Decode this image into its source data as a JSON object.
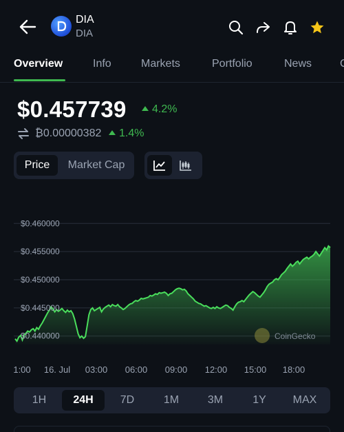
{
  "header": {
    "coin_name": "DIA",
    "coin_symbol": "DIA"
  },
  "tabs": [
    "Overview",
    "Info",
    "Markets",
    "Portfolio",
    "News",
    "C"
  ],
  "price": {
    "value": "$0.457739",
    "change": "4.2%",
    "btc_value": "₿0.00000382",
    "btc_change": "1.4%"
  },
  "toggles": {
    "price": "Price",
    "market_cap": "Market Cap"
  },
  "chart_data": {
    "type": "area",
    "y_ticks": [
      "$0.460000",
      "$0.455000",
      "$0.450000",
      "$0.445000",
      "$0.440000"
    ],
    "ylim": [
      0.4385,
      0.4615
    ],
    "x_ticks": [
      "1:00",
      "16. Jul",
      "03:00",
      "06:00",
      "09:00",
      "12:00",
      "15:00",
      "18:00"
    ],
    "watermark": "CoinGecko",
    "values": [
      0.4395,
      0.4391,
      0.4398,
      0.4401,
      0.4393,
      0.4402,
      0.4405,
      0.4409,
      0.4407,
      0.4411,
      0.4413,
      0.4409,
      0.4415,
      0.4412,
      0.4418,
      0.4423,
      0.4429,
      0.4435,
      0.4441,
      0.4446,
      0.4452,
      0.4448,
      0.4443,
      0.4447,
      0.4444,
      0.4446,
      0.4449,
      0.4445,
      0.4442,
      0.4446,
      0.4443,
      0.4445,
      0.444,
      0.443,
      0.4417,
      0.4404,
      0.4397,
      0.44,
      0.4396,
      0.4399,
      0.4418,
      0.4438,
      0.4447,
      0.445,
      0.4445,
      0.4447,
      0.4449,
      0.4451,
      0.4443,
      0.4448,
      0.4451,
      0.4453,
      0.4455,
      0.4452,
      0.4456,
      0.4454,
      0.4453,
      0.4456,
      0.4452,
      0.445,
      0.4447,
      0.4449,
      0.4452,
      0.4455,
      0.4457,
      0.4458,
      0.4461,
      0.4463,
      0.4462,
      0.4464,
      0.4467,
      0.4466,
      0.4467,
      0.4468,
      0.4469,
      0.4472,
      0.4471,
      0.4473,
      0.4475,
      0.4474,
      0.4477,
      0.4476,
      0.4477,
      0.4478,
      0.4476,
      0.4472,
      0.4475,
      0.4476,
      0.4479,
      0.4482,
      0.4484,
      0.4485,
      0.4484,
      0.4482,
      0.4483,
      0.448,
      0.4475,
      0.4472,
      0.4469,
      0.4466,
      0.4462,
      0.446,
      0.4458,
      0.4457,
      0.4455,
      0.4453,
      0.4454,
      0.4452,
      0.445,
      0.4449,
      0.4451,
      0.4449,
      0.4452,
      0.445,
      0.4449,
      0.4451,
      0.4453,
      0.4455,
      0.4454,
      0.4451,
      0.4449,
      0.4446,
      0.4452,
      0.4457,
      0.446,
      0.4461,
      0.4463,
      0.4461,
      0.4465,
      0.4469,
      0.4473,
      0.4476,
      0.4479,
      0.4477,
      0.4474,
      0.4471,
      0.4469,
      0.4473,
      0.4477,
      0.4482,
      0.4488,
      0.4492,
      0.4494,
      0.4496,
      0.45,
      0.4502,
      0.45,
      0.4504,
      0.4509,
      0.4512,
      0.4515,
      0.452,
      0.4524,
      0.4528,
      0.4524,
      0.4527,
      0.4531,
      0.4533,
      0.4528,
      0.4532,
      0.4536,
      0.4538,
      0.454,
      0.4537,
      0.454,
      0.4542,
      0.4545,
      0.455,
      0.4546,
      0.4542,
      0.4547,
      0.4552,
      0.4557,
      0.4553,
      0.456,
      0.4557
    ]
  },
  "ranges": [
    "1H",
    "24H",
    "7D",
    "1M",
    "3M",
    "1Y",
    "MAX"
  ],
  "colors": {
    "background": "#0d1117",
    "accent_green": "#3fb950",
    "star_yellow": "#f5c518",
    "panel": "#1c2230"
  }
}
